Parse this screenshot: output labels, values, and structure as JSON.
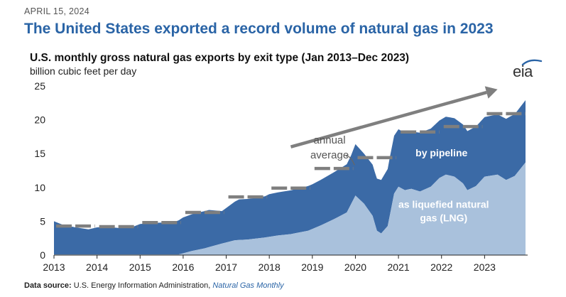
{
  "header": {
    "date": "APRIL 15, 2024",
    "headline": "The United States exported a record volume of natural gas in 2023",
    "logo_text": "eia"
  },
  "footer": {
    "source_label": "Data source:",
    "source_org": "U.S. Energy Information Administration,",
    "source_pub": "Natural Gas Monthly"
  },
  "colors": {
    "pipeline": "#3b6aa6",
    "lng": "#a9c1dc",
    "annual_average": "#7f7f7f",
    "headline": "#2a64a6"
  },
  "chart_data": {
    "type": "area",
    "title": "U.S. monthly gross natural gas exports by exit type (Jan 2013–Dec 2023)",
    "ylabel": "billion cubic feet per day",
    "xlabel": "",
    "ylim": [
      0,
      25
    ],
    "xlim": [
      2013,
      2024
    ],
    "yticks": [
      0,
      5,
      10,
      15,
      20,
      25
    ],
    "xticks": [
      "2013",
      "2014",
      "2015",
      "2016",
      "2017",
      "2018",
      "2019",
      "2020",
      "2021",
      "2022",
      "2023"
    ],
    "stacked": true,
    "series": [
      {
        "name": "as liquefied natural gas (LNG)",
        "color": "#a9c1dc",
        "x": [
          2013.0,
          2014.0,
          2015.0,
          2015.9,
          2016.2,
          2016.5,
          2016.9,
          2017.2,
          2017.5,
          2017.9,
          2018.2,
          2018.5,
          2018.9,
          2019.2,
          2019.5,
          2019.8,
          2020.0,
          2020.2,
          2020.4,
          2020.5,
          2020.6,
          2020.75,
          2020.9,
          2021.0,
          2021.15,
          2021.3,
          2021.5,
          2021.75,
          2021.95,
          2022.1,
          2022.3,
          2022.5,
          2022.6,
          2022.8,
          2023.0,
          2023.3,
          2023.5,
          2023.7,
          2023.95
        ],
        "values": [
          0.1,
          0.1,
          0.1,
          0.1,
          0.6,
          1.0,
          1.7,
          2.2,
          2.3,
          2.6,
          2.9,
          3.1,
          3.6,
          4.4,
          5.3,
          6.3,
          8.8,
          7.6,
          5.8,
          3.6,
          3.2,
          4.3,
          9.1,
          10.1,
          9.6,
          9.8,
          9.4,
          10.1,
          11.4,
          11.9,
          11.6,
          10.6,
          9.6,
          10.2,
          11.6,
          11.9,
          11.1,
          11.7,
          13.7
        ]
      },
      {
        "name": "by pipeline",
        "color": "#3b6aa6",
        "x": [
          2013.0,
          2013.2,
          2013.5,
          2013.8,
          2014.0,
          2014.2,
          2014.5,
          2014.8,
          2015.0,
          2015.2,
          2015.5,
          2015.8,
          2016.0,
          2016.3,
          2016.6,
          2016.9,
          2017.0,
          2017.3,
          2017.6,
          2017.9,
          2018.0,
          2018.3,
          2018.6,
          2018.9,
          2019.0,
          2019.3,
          2019.6,
          2019.9,
          2020.0,
          2020.2,
          2020.45,
          2020.6,
          2020.8,
          2021.0,
          2021.25,
          2021.5,
          2021.75,
          2021.95,
          2022.2,
          2022.5,
          2022.8,
          2022.95,
          2023.3,
          2023.6,
          2023.95
        ],
        "values": [
          4.9,
          4.4,
          4.0,
          3.7,
          4.0,
          4.1,
          3.9,
          4.0,
          4.5,
          4.6,
          4.7,
          4.8,
          5.3,
          5.5,
          5.5,
          4.8,
          5.1,
          6.0,
          6.0,
          6.1,
          6.3,
          6.4,
          6.5,
          6.6,
          6.6,
          6.8,
          7.0,
          7.2,
          7.6,
          7.4,
          7.6,
          7.9,
          8.6,
          8.5,
          8.4,
          8.7,
          8.6,
          8.5,
          8.6,
          8.7,
          8.8,
          8.8,
          8.9,
          9.1,
          9.2
        ]
      }
    ],
    "annual_average": {
      "name": "annual average",
      "years": [
        2013,
        2014,
        2015,
        2016,
        2017,
        2018,
        2019,
        2020,
        2021,
        2022,
        2023
      ],
      "values": [
        4.3,
        4.2,
        4.8,
        6.3,
        8.6,
        9.9,
        12.8,
        14.4,
        18.2,
        19.0,
        20.9
      ]
    },
    "annotations": [
      {
        "text": "annual",
        "x": 2019.4,
        "y": 16.5
      },
      {
        "text": "average",
        "x": 2019.4,
        "y": 14.3
      },
      {
        "text": "by pipeline",
        "x": 2022.0,
        "y": 14.6
      },
      {
        "text": "as liquefied natural",
        "x": 2022.05,
        "y": 7.0
      },
      {
        "text": "gas (LNG)",
        "x": 2022.05,
        "y": 5.0
      }
    ],
    "trend_arrow": {
      "x": [
        2018.5,
        2023.3
      ],
      "y": [
        16.0,
        24.5
      ],
      "color": "#7f7f7f"
    },
    "grid": false,
    "legend": "none"
  }
}
